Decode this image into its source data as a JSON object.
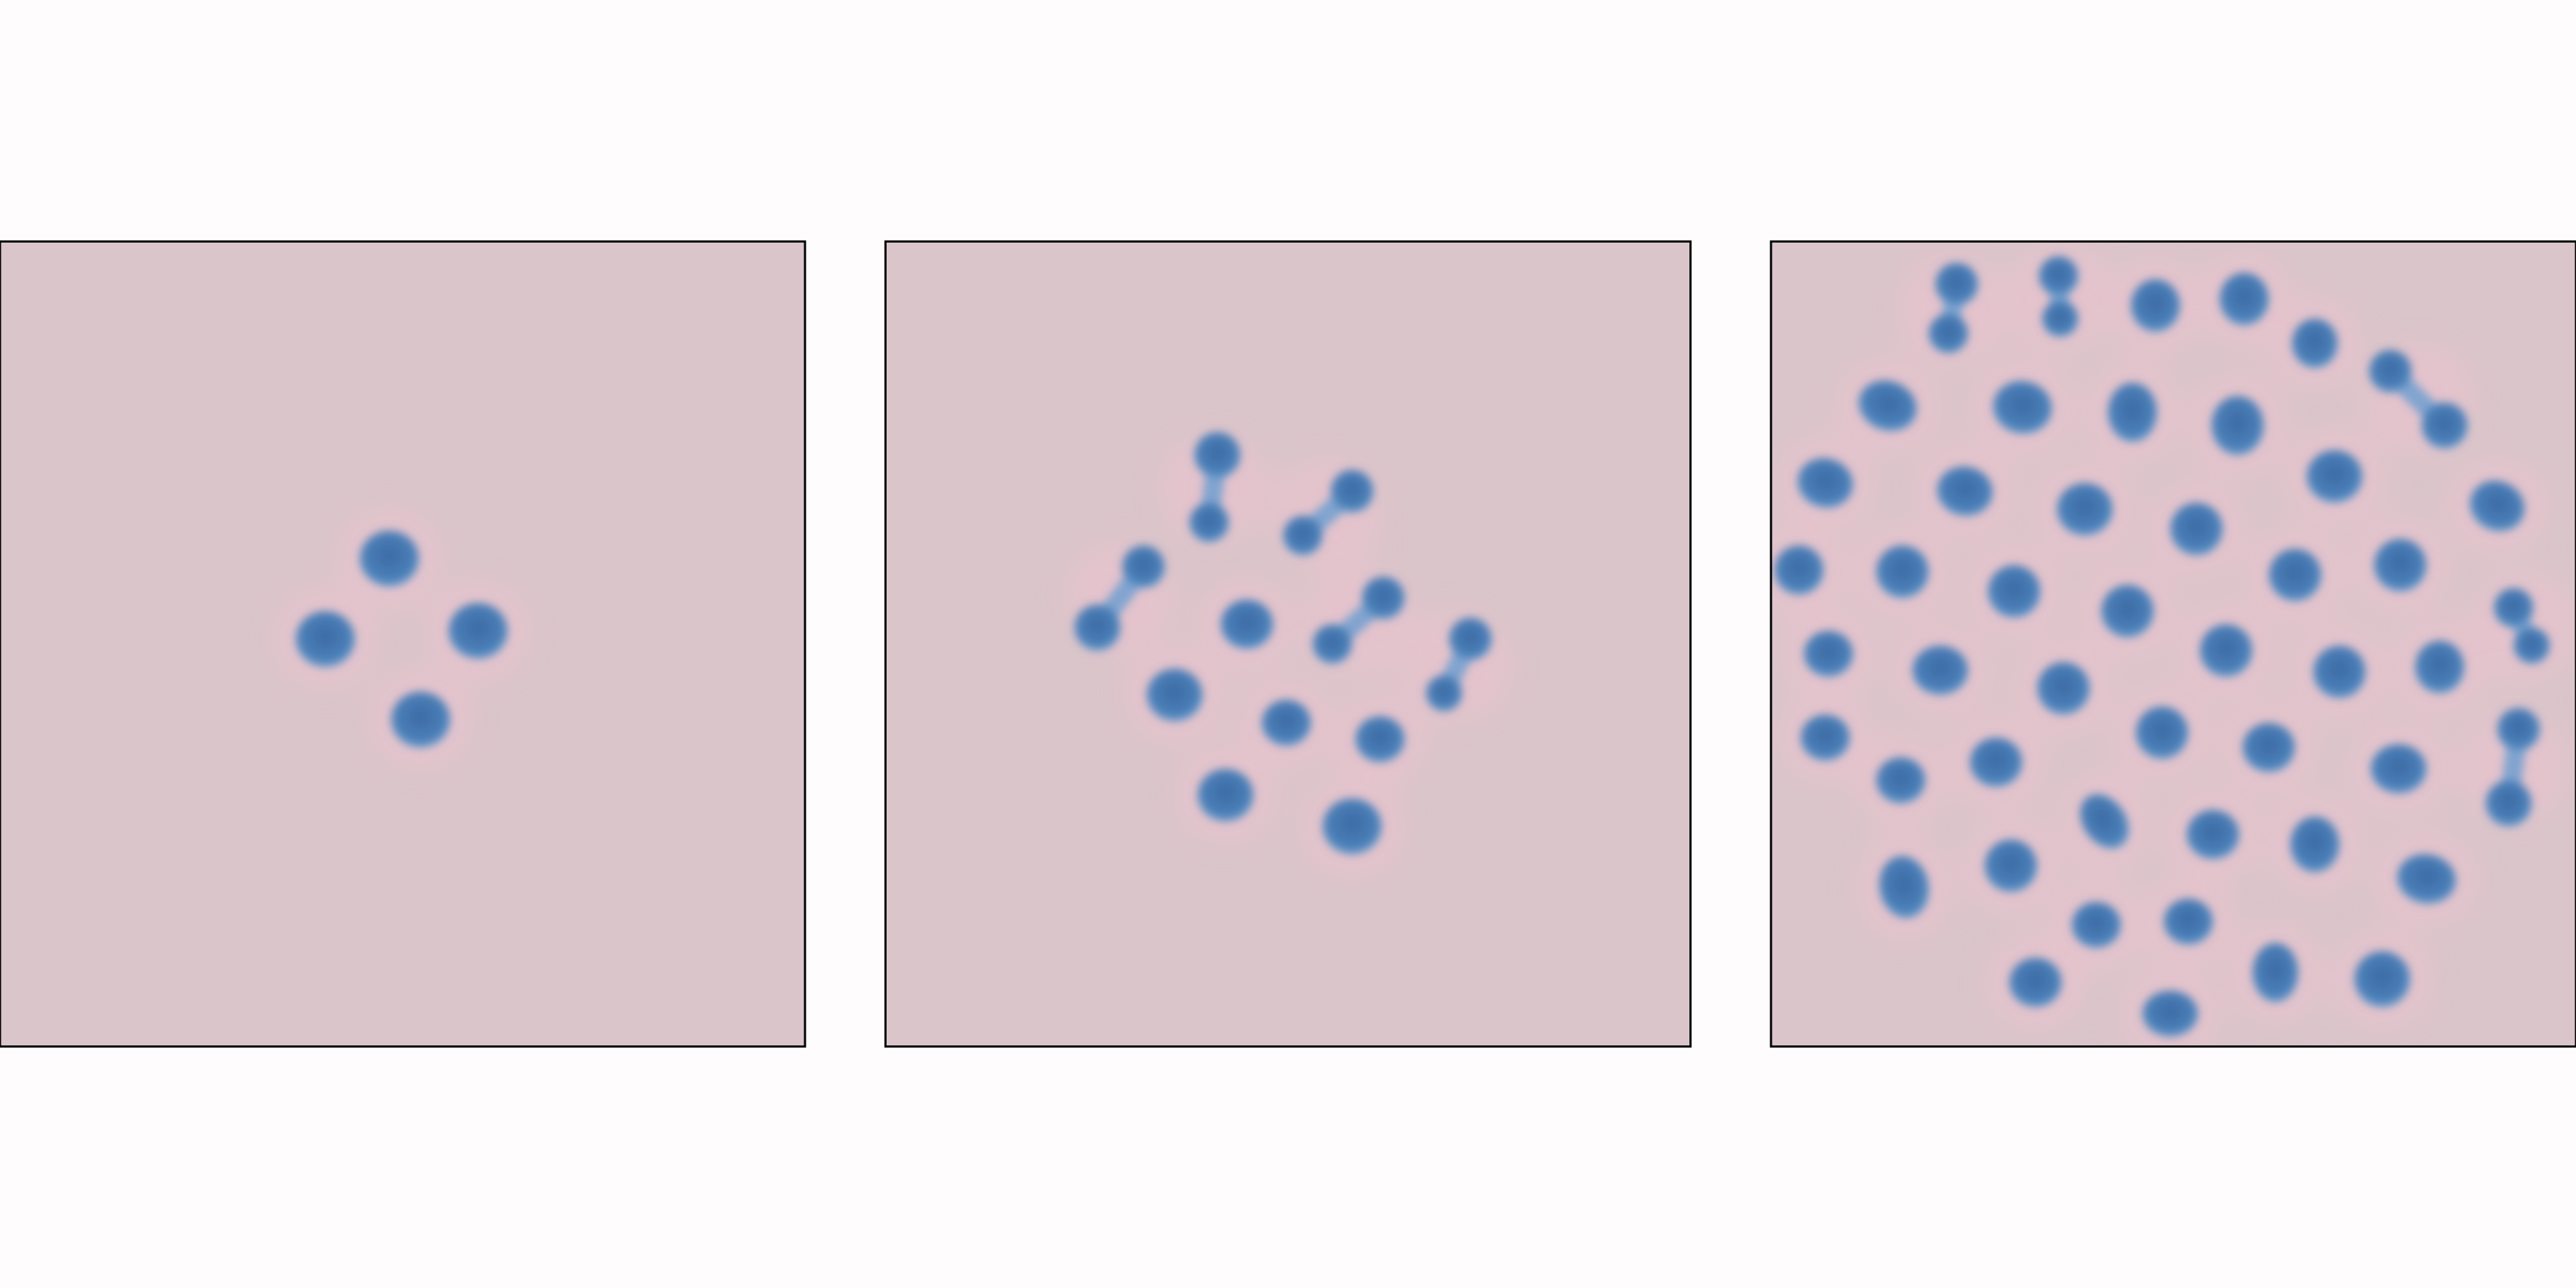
{
  "colors": {
    "page_background": "#fefcfc",
    "field_background": "#d9c5ca",
    "halo": "#e6c3cd",
    "spot_core": "#3f6fa8",
    "spot_edge": "#5f9ad0",
    "frame": "#000000"
  },
  "panels": [
    {
      "name": "panel-1",
      "stage": "early",
      "spot_count": 4,
      "dumbbell_count": 0
    },
    {
      "name": "panel-2",
      "stage": "intermediate",
      "spot_count": 11,
      "dumbbell_count": 5
    },
    {
      "name": "panel-3",
      "stage": "late",
      "spot_count": 53,
      "dumbbell_count": 5
    }
  ]
}
